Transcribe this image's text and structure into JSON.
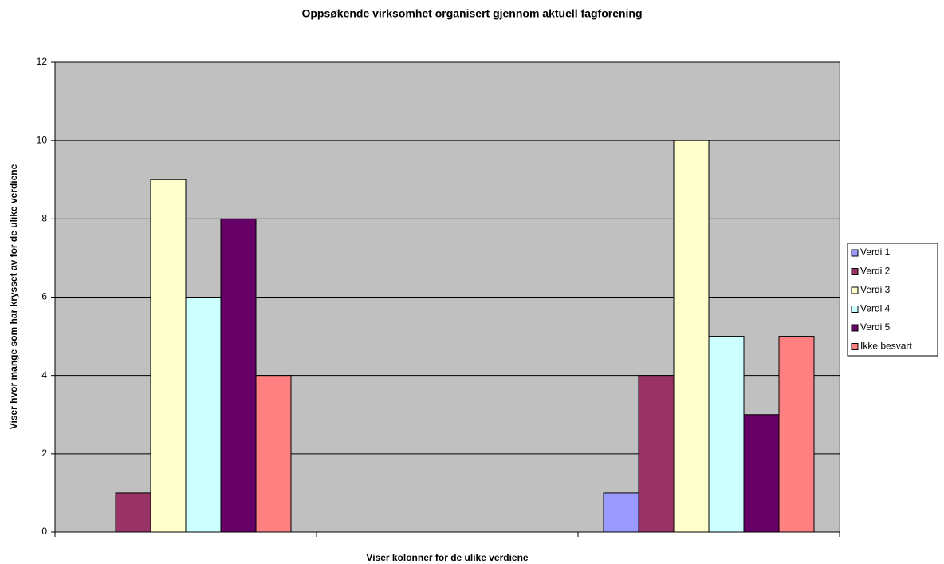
{
  "chart_data": {
    "type": "bar",
    "title": "Oppsøkende virksomhet organisert gjennom aktuell fagforening",
    "x_label": "Viser kolonner for de ulike verdiene",
    "y_label": "Viser hvor mange som har krysset av for de ulike verdiene",
    "categories": [
      null,
      null,
      null
    ],
    "series": [
      {
        "name": "Verdi 1",
        "color": "#9999ff",
        "values": [
          0,
          0,
          1
        ]
      },
      {
        "name": "Verdi 2",
        "color": "#993366",
        "values": [
          1,
          0,
          4
        ]
      },
      {
        "name": "Verdi 3",
        "color": "#ffffcc",
        "values": [
          9,
          0,
          10
        ]
      },
      {
        "name": "Verdi 4",
        "color": "#ccffff",
        "values": [
          6,
          0,
          5
        ]
      },
      {
        "name": "Verdi 5",
        "color": "#660066",
        "values": [
          8,
          0,
          3
        ]
      },
      {
        "name": "Ikke besvart",
        "color": "#ff8080",
        "values": [
          4,
          0,
          5
        ]
      }
    ],
    "ylim": [
      0,
      12
    ],
    "yticks": [
      0,
      2,
      4,
      6,
      8,
      10,
      12
    ],
    "grid": true,
    "plot_background": "#c0c0c0",
    "legend": "right"
  }
}
